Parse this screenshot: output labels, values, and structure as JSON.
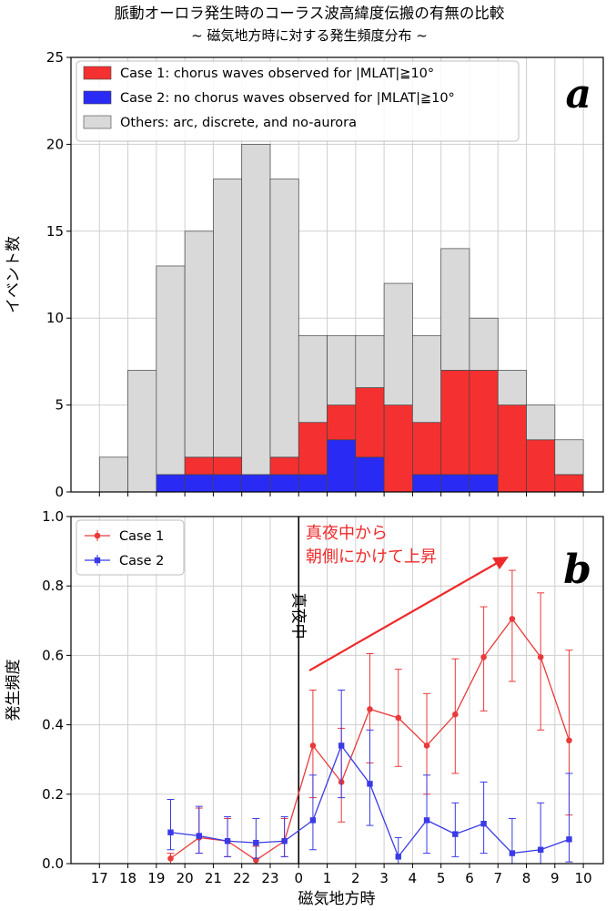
{
  "title_line1": "脈動オーロラ発生時のコーラス波高緯度伝搬の有無の比較",
  "title_line2": "~ 磁気地方時に対する発生頻度分布 ~",
  "xlabel": "磁気地方時",
  "x_ticks": [
    "17",
    "18",
    "19",
    "20",
    "21",
    "22",
    "23",
    "0",
    "1",
    "2",
    "3",
    "4",
    "5",
    "6",
    "7",
    "8",
    "9",
    "10"
  ],
  "chart_data": [
    {
      "type": "bar",
      "panel": "a",
      "panel_label": "a",
      "ylabel": "イベント数",
      "ylim": [
        0,
        25
      ],
      "yticks": [
        0,
        5,
        10,
        15,
        20,
        25
      ],
      "grid": true,
      "legend_position": "top-left",
      "bins": [
        "17-18",
        "18-19",
        "19-20",
        "20-21",
        "21-22",
        "22-23",
        "23-0",
        "0-1",
        "1-2",
        "2-3",
        "3-4",
        "4-5",
        "5-6",
        "6-7",
        "7-8",
        "8-9",
        "9-10"
      ],
      "stacked": true,
      "series": [
        {
          "name": "Case 2: no chorus waves observed for |MLAT|≧10°",
          "color": "#2a2af5",
          "values": [
            0,
            0,
            1,
            1,
            1,
            1,
            1,
            1,
            3,
            2,
            0,
            1,
            1,
            1,
            0,
            0,
            0
          ]
        },
        {
          "name": "Case 1: chorus waves observed for |MLAT|≧10°",
          "color": "#f53030",
          "values": [
            0,
            0,
            0,
            1,
            1,
            0,
            1,
            3,
            2,
            4,
            5,
            3,
            6,
            6,
            5,
            3,
            1
          ]
        },
        {
          "name": "Others: arc, discrete, and no-aurora",
          "color": "#d9d9d9",
          "values": [
            2,
            7,
            12,
            13,
            16,
            19,
            16,
            5,
            4,
            3,
            7,
            5,
            7,
            3,
            2,
            2,
            2
          ]
        }
      ],
      "totals": [
        2,
        7,
        13,
        15,
        18,
        20,
        18,
        9,
        9,
        9,
        12,
        9,
        14,
        10,
        7,
        5,
        3
      ]
    },
    {
      "type": "line",
      "panel": "b",
      "panel_label": "b",
      "ylabel": "発生頻度",
      "ylim": [
        0,
        1.0
      ],
      "yticks": [
        "0.0",
        "0.2",
        "0.4",
        "0.6",
        "0.8",
        "1.0"
      ],
      "grid": true,
      "legend_position": "top-left",
      "midnight_label": "真夜中",
      "annotation": [
        "真夜中から",
        "朝側にかけて上昇"
      ],
      "series": [
        {
          "name": "Case 1",
          "color": "#ea3a3a",
          "marker": "circle",
          "x": [
            19.5,
            20.5,
            21.5,
            22.5,
            23.5,
            0.5,
            1.5,
            2.5,
            3.5,
            4.5,
            5.5,
            6.5,
            7.5,
            8.5,
            9.5
          ],
          "y": [
            0.015,
            0.075,
            0.065,
            0.01,
            0.065,
            0.34,
            0.235,
            0.445,
            0.42,
            0.34,
            0.43,
            0.595,
            0.705,
            0.595,
            0.355
          ],
          "err_low": [
            0.0,
            0.03,
            0.02,
            0.0,
            0.02,
            0.19,
            0.12,
            0.29,
            0.28,
            0.2,
            0.26,
            0.44,
            0.525,
            0.385,
            0.14
          ],
          "err_high": [
            0.03,
            0.16,
            0.13,
            0.05,
            0.13,
            0.5,
            0.39,
            0.605,
            0.56,
            0.49,
            0.59,
            0.74,
            0.845,
            0.78,
            0.615
          ]
        },
        {
          "name": "Case 2",
          "color": "#3a3ae6",
          "marker": "square",
          "x": [
            19.5,
            20.5,
            21.5,
            22.5,
            23.5,
            0.5,
            1.5,
            2.5,
            3.5,
            4.5,
            5.5,
            6.5,
            7.5,
            8.5,
            9.5
          ],
          "y": [
            0.09,
            0.08,
            0.065,
            0.06,
            0.065,
            0.125,
            0.34,
            0.23,
            0.02,
            0.125,
            0.085,
            0.115,
            0.03,
            0.04,
            0.07
          ],
          "err_low": [
            0.04,
            0.03,
            0.02,
            0.015,
            0.02,
            0.04,
            0.19,
            0.11,
            0.0,
            0.03,
            0.02,
            0.03,
            0.0,
            0.0,
            0.005
          ],
          "err_high": [
            0.185,
            0.165,
            0.135,
            0.13,
            0.135,
            0.255,
            0.5,
            0.385,
            0.075,
            0.255,
            0.175,
            0.235,
            0.13,
            0.175,
            0.26
          ]
        }
      ]
    }
  ]
}
